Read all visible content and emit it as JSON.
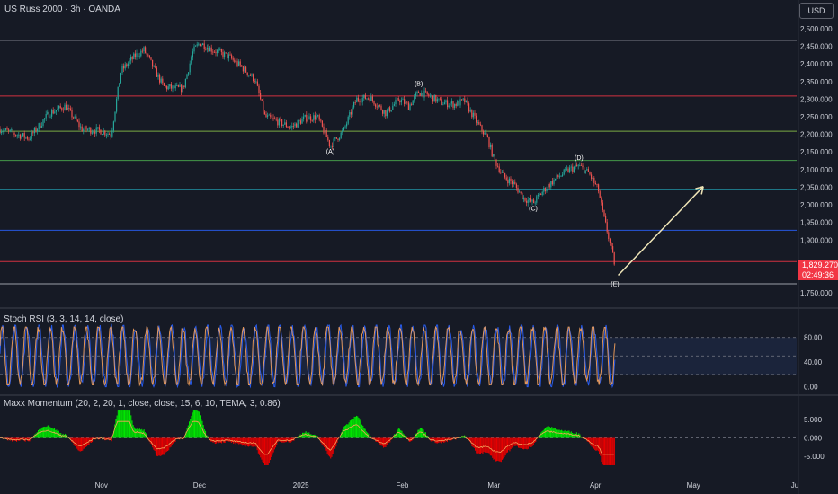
{
  "header": {
    "main_title": "US Russ 2000 · 3h · OANDA",
    "currency": "USD"
  },
  "price_tag": {
    "price": "1,829.270",
    "countdown": "02:49:36"
  },
  "colors": {
    "background": "#161a25",
    "up": "#26a69a",
    "down": "#ef5350",
    "stoch_k": "#2962ff",
    "stoch_d": "#f7a35c",
    "arrow": "#f0e6b8"
  },
  "chart_data": [
    {
      "type": "candlestick",
      "title": "US Russ 2000 · 3h · OANDA",
      "x_labels": [
        "Nov",
        "Dec",
        "2025",
        "Feb",
        "Mar",
        "Apr",
        "May",
        "Ju"
      ],
      "x_range": [
        "2024-10-01",
        "2025-06-01"
      ],
      "y_ticks": [
        "2,500.000",
        "2,450.000",
        "2,400.000",
        "2,350.000",
        "2,300.000",
        "2,250.000",
        "2,200.000",
        "2,150.000",
        "2,100.000",
        "2,050.000",
        "2,000.000",
        "1,950.000",
        "1,900.000",
        "1,850.000",
        "1,800.000",
        "1,750.000"
      ],
      "ylim": [
        1730,
        2510
      ],
      "last_price": 1829.27,
      "horizontal_levels": [
        {
          "price": 2467,
          "color": "#b2b5be"
        },
        {
          "price": 2309,
          "color": "#f23645"
        },
        {
          "price": 2209,
          "color": "#8bc34a"
        },
        {
          "price": 2126,
          "color": "#4caf50"
        },
        {
          "price": 2044,
          "color": "#26c6da"
        },
        {
          "price": 1928,
          "color": "#2962ff"
        },
        {
          "price": 1839,
          "color": "#f23645"
        },
        {
          "price": 1776,
          "color": "#b2b5be"
        }
      ],
      "price_path": [
        [
          "2024-10-01",
          2215
        ],
        [
          "2024-10-06",
          2200
        ],
        [
          "2024-10-10",
          2190
        ],
        [
          "2024-10-16",
          2260
        ],
        [
          "2024-10-21",
          2280
        ],
        [
          "2024-10-26",
          2215
        ],
        [
          "2024-11-01",
          2210
        ],
        [
          "2024-11-04",
          2200
        ],
        [
          "2024-11-07",
          2380
        ],
        [
          "2024-11-11",
          2420
        ],
        [
          "2024-11-14",
          2440
        ],
        [
          "2024-11-18",
          2370
        ],
        [
          "2024-11-20",
          2335
        ],
        [
          "2024-11-24",
          2330
        ],
        [
          "2024-11-26",
          2330
        ],
        [
          "2024-11-29",
          2435
        ],
        [
          "2024-12-01",
          2460
        ],
        [
          "2024-12-05",
          2440
        ],
        [
          "2024-12-10",
          2420
        ],
        [
          "2024-12-14",
          2390
        ],
        [
          "2024-12-18",
          2355
        ],
        [
          "2024-12-21",
          2250
        ],
        [
          "2024-12-24",
          2240
        ],
        [
          "2024-12-29",
          2220
        ],
        [
          "2025-01-02",
          2245
        ],
        [
          "2025-01-06",
          2250
        ],
        [
          "2025-01-10",
          2168
        ],
        [
          "2025-01-14",
          2210
        ],
        [
          "2025-01-18",
          2300
        ],
        [
          "2025-01-22",
          2305
        ],
        [
          "2025-01-27",
          2260
        ],
        [
          "2025-01-31",
          2300
        ],
        [
          "2025-02-03",
          2280
        ],
        [
          "2025-02-06",
          2320
        ],
        [
          "2025-02-09",
          2310
        ],
        [
          "2025-02-13",
          2290
        ],
        [
          "2025-02-17",
          2285
        ],
        [
          "2025-02-20",
          2295
        ],
        [
          "2025-02-24",
          2230
        ],
        [
          "2025-02-27",
          2190
        ],
        [
          "2025-03-01",
          2130
        ],
        [
          "2025-03-04",
          2080
        ],
        [
          "2025-03-07",
          2060
        ],
        [
          "2025-03-10",
          2020
        ],
        [
          "2025-03-13",
          2005
        ],
        [
          "2025-03-17",
          2050
        ],
        [
          "2025-03-20",
          2075
        ],
        [
          "2025-03-24",
          2100
        ],
        [
          "2025-03-27",
          2110
        ],
        [
          "2025-03-30",
          2090
        ],
        [
          "2025-04-02",
          2040
        ],
        [
          "2025-04-03",
          1990
        ],
        [
          "2025-04-05",
          1910
        ],
        [
          "2025-04-07",
          1829
        ]
      ],
      "wave_labels": [
        {
          "label": "(A)",
          "date": "2025-01-10",
          "price": 2145
        },
        {
          "label": "(B)",
          "date": "2025-02-06",
          "price": 2338
        },
        {
          "label": "(C)",
          "date": "2025-03-13",
          "price": 1983
        },
        {
          "label": "(D)",
          "date": "2025-03-27",
          "price": 2128
        },
        {
          "label": "(E)",
          "date": "2025-04-07",
          "price": 1770
        }
      ],
      "projection_arrow": {
        "from": [
          "2025-04-08",
          1800
        ],
        "to": [
          "2025-05-04",
          2052
        ]
      }
    },
    {
      "type": "line",
      "title": "Stoch RSI (3, 3, 14, 14, close)",
      "y_ticks": [
        "80.00",
        "40.00",
        "0.00"
      ],
      "ylim": [
        -5,
        100
      ],
      "levels": [
        80,
        50,
        20
      ],
      "series": [
        {
          "color": "#2962ff",
          "cycles": 51,
          "range": [
            5,
            95
          ]
        },
        {
          "color": "#f7a35c",
          "cycles": 51,
          "range": [
            8,
            92
          ]
        }
      ]
    },
    {
      "type": "bar",
      "title": "Maxx Momentum (20, 2, 20, 1, close, close, 15, 6, 10, TEMA, 3, 0.86)",
      "y_ticks": [
        "5.000",
        "0.000",
        "-5.000"
      ],
      "ylim": [
        -8,
        8
      ],
      "zero_line": 0,
      "colors": {
        "positive": "#00e600",
        "negative": "#e60000",
        "signal": "#f7a35c"
      }
    }
  ]
}
